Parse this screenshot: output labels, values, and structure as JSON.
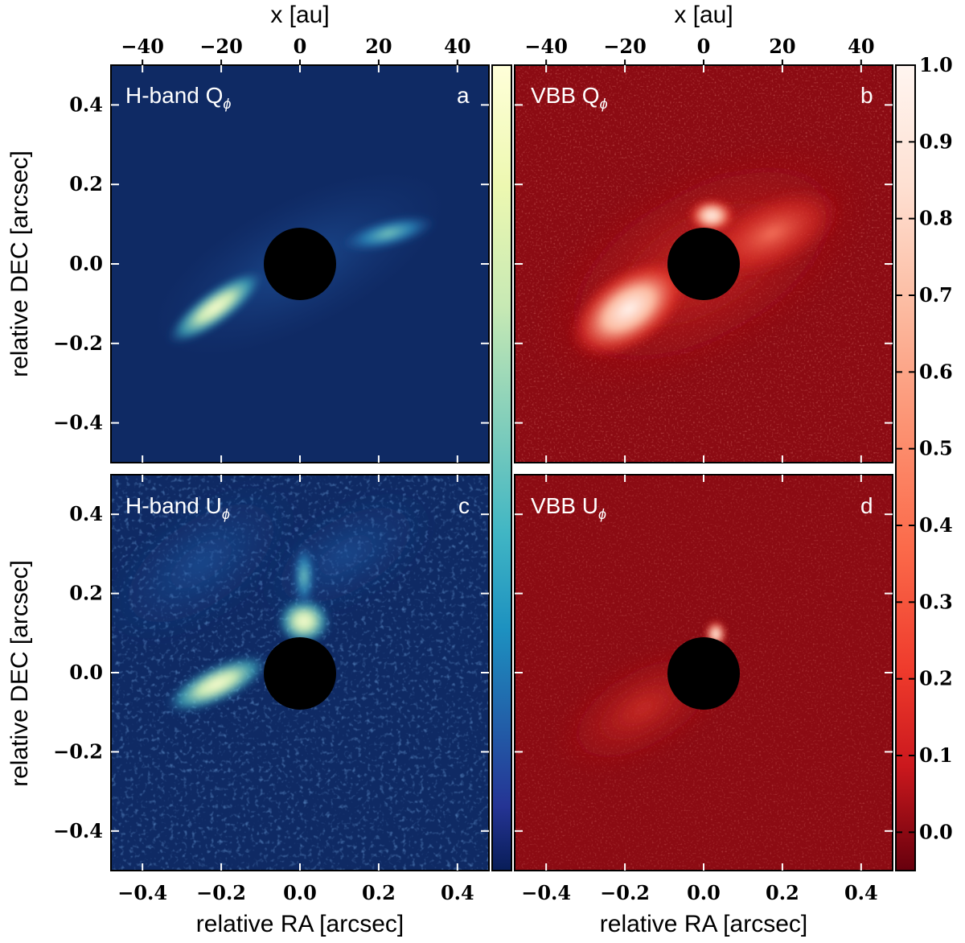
{
  "chart_data": {
    "type": "heatmap",
    "axes": {
      "top_xlabel": "x [au]",
      "bottom_xlabel": "relative RA [arcsec]",
      "ylabel": "relative DEC [arcsec]",
      "top_ticks": [
        "−40",
        "−20",
        "0",
        "20",
        "40"
      ],
      "top_tick_values": [
        -40,
        -20,
        0,
        20,
        40
      ],
      "bottom_ticks": [
        "−0.4",
        "−0.2",
        "0.0",
        "0.2",
        "0.4"
      ],
      "bottom_tick_values": [
        -0.4,
        -0.2,
        0.0,
        0.2,
        0.4
      ],
      "left_ticks": [
        "0.4",
        "0.2",
        "0.0",
        "−0.2",
        "−0.4"
      ],
      "left_tick_values": [
        0.4,
        0.2,
        0.0,
        -0.2,
        -0.4
      ],
      "xlim": [
        -0.48,
        0.48
      ],
      "ylim": [
        -0.5,
        0.5
      ],
      "au_xlim": [
        -48,
        48
      ]
    },
    "colorbar": {
      "ticks": [
        "1.0",
        "0.9",
        "0.8",
        "0.7",
        "0.6",
        "0.5",
        "0.4",
        "0.3",
        "0.2",
        "0.1",
        "0.0"
      ],
      "values": [
        1.0,
        0.9,
        0.8,
        0.7,
        0.6,
        0.5,
        0.4,
        0.3,
        0.2,
        0.1,
        0.0
      ],
      "range": [
        -0.05,
        1.0
      ],
      "blue_colormap": "YlGnBu",
      "red_colormap": "Reds"
    },
    "coronagraph_mask_radius_arcsec": 0.09,
    "panels": [
      {
        "id": "a",
        "title_main": "H-band Q",
        "title_sub": "ϕ",
        "letter": "a",
        "colormap": "blue"
      },
      {
        "id": "b",
        "title_main": "VBB Q",
        "title_sub": "ϕ",
        "letter": "b",
        "colormap": "red"
      },
      {
        "id": "c",
        "title_main": "H-band U",
        "title_sub": "ϕ",
        "letter": "c",
        "colormap": "blue"
      },
      {
        "id": "d",
        "title_main": "VBB U",
        "title_sub": "ϕ",
        "letter": "d",
        "colormap": "red"
      }
    ]
  },
  "colors": {
    "blue_bg": "#0f2a64",
    "blue_mid": "#2a8fbd",
    "blue_hi": "#ffffd9",
    "red_bg": "#8c0b13",
    "red_mid": "#e0483a",
    "red_hi": "#fff5f0",
    "mask": "#000000"
  }
}
